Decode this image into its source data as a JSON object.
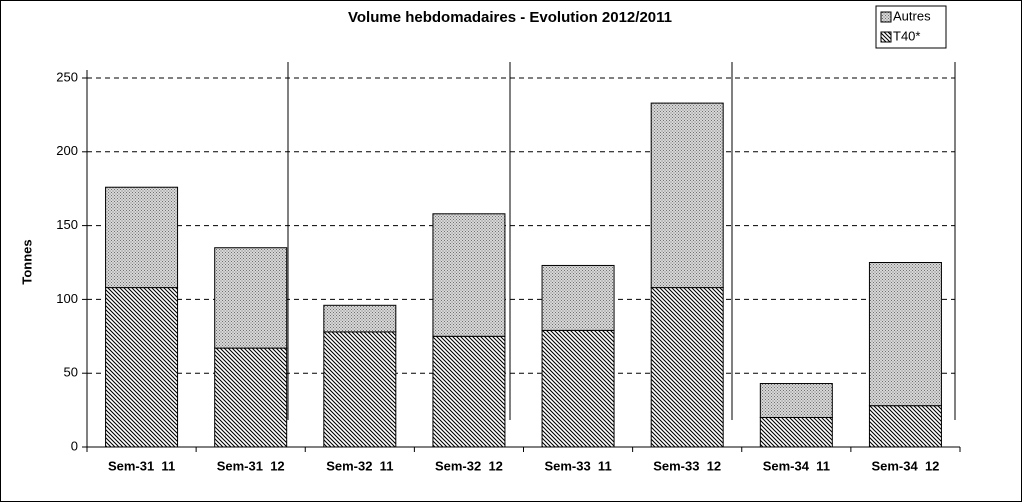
{
  "chart_data": {
    "type": "stacked_bar",
    "title": "Volume hebdomadaires  - Evolution 2012/2011",
    "y_label": "Tonnes",
    "categories": [
      "Sem-31  11",
      "Sem-31  12",
      "Sem-32  11",
      "Sem-32  12",
      "Sem-33  11",
      "Sem-33  12",
      "Sem-34  11",
      "Sem-34  12"
    ],
    "series": [
      {
        "name": "T40*",
        "color": "#000000",
        "pattern": "hatch",
        "values": [
          108,
          67,
          78,
          75,
          79,
          108,
          20,
          28
        ]
      },
      {
        "name": "Autres",
        "color": "#707070",
        "pattern": "dots",
        "values": [
          68,
          68,
          18,
          83,
          44,
          125,
          23,
          97
        ]
      }
    ],
    "ylim": [
      0,
      250
    ],
    "yticks": [
      0,
      50,
      100,
      150,
      200,
      250
    ],
    "grid": true,
    "legend": "top-right"
  }
}
